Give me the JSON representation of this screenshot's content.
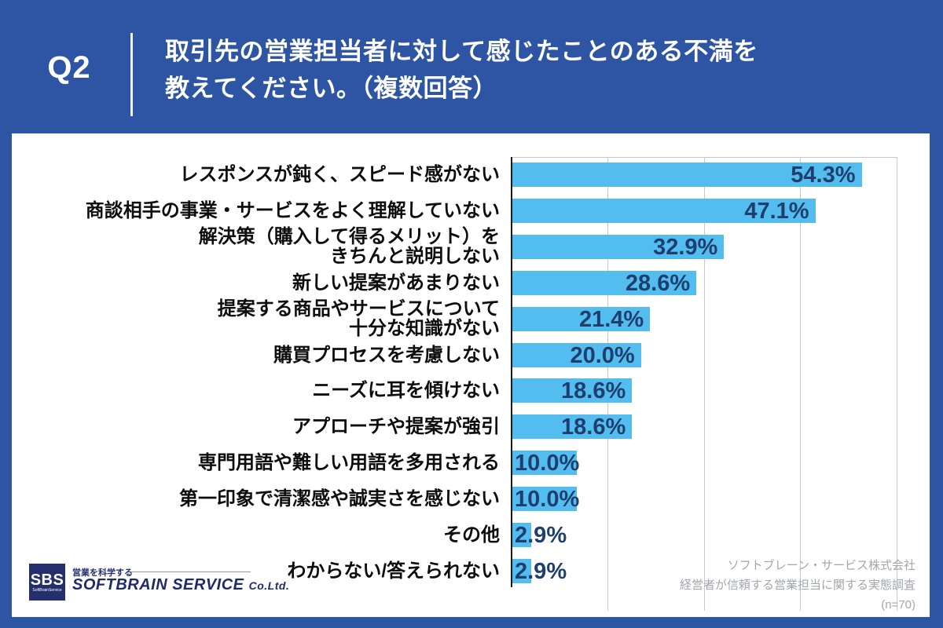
{
  "header": {
    "q_label": "Q2",
    "title": "取引先の営業担当者に対して感じたことのある不満を\n教えてください。（複数回答）"
  },
  "chart_data": {
    "type": "bar",
    "orientation": "horizontal",
    "title": "取引先の営業担当者に対して感じたことのある不満を教えてください。（複数回答）",
    "categories": [
      "レスポンスが鈍く、スピード感がない",
      "商談相手の事業・サービスをよく理解していない",
      "解決策（購入して得るメリット）を\nきちんと説明しない",
      "新しい提案があまりない",
      "提案する商品やサービスについて\n十分な知識がない",
      "購買プロセスを考慮しない",
      "ニーズに耳を傾けない",
      "アプローチや提案が強引",
      "専門用語や難しい用語を多用される",
      "第一印象で清潔感や誠実さを感じない",
      "その他",
      "わからない/答えられない"
    ],
    "values": [
      54.3,
      47.1,
      32.9,
      28.6,
      21.4,
      20.0,
      18.6,
      18.6,
      10.0,
      10.0,
      2.9,
      2.9
    ],
    "value_suffix": "%",
    "xlim": [
      0,
      60
    ],
    "gridline_step": 15,
    "grid": true,
    "legend": "none",
    "bar_color": "#54BDF0",
    "value_color": "#1E3F6D"
  },
  "footer": {
    "logo": {
      "abbr": "SBS",
      "sub": "SoftBrainService",
      "tagline": "営業を科学する",
      "company": "SOFTBRAIN SERVICE",
      "suffix": "Co.Ltd."
    },
    "attribution": [
      "ソフトブレーン・サービス株式会社",
      "経営者が信頼する営業担当に関する実態調査",
      "(n=70)"
    ]
  },
  "colors": {
    "background": "#2E55A4",
    "card": "#FFFFFF",
    "bar": "#54BDF0",
    "value_text": "#1E3F6D",
    "label_text": "#0D0D0D",
    "gridline": "#C9C9C9",
    "axis": "#1A1A1A",
    "logo_navy": "#252F6E",
    "attribution_gray": "#A2A7AD"
  }
}
